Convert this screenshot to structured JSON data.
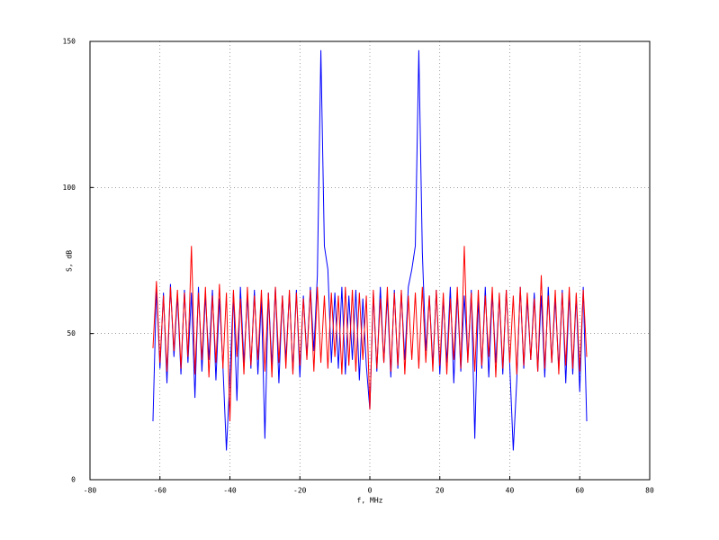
{
  "chart_data": {
    "type": "line",
    "xlabel": "f, MHz",
    "ylabel": "S, dB",
    "x": [
      -62,
      -61,
      -60,
      -59,
      -58,
      -57,
      -56,
      -55,
      -54,
      -53,
      -52,
      -51,
      -50,
      -49,
      -48,
      -47,
      -46,
      -45,
      -44,
      -43,
      -42,
      -41,
      -40,
      -39,
      -38,
      -37,
      -36,
      -35,
      -34,
      -33,
      -32,
      -31,
      -30,
      -29,
      -28,
      -27,
      -26,
      -25,
      -24,
      -23,
      -22,
      -21,
      -20,
      -19,
      -18,
      -17,
      -16,
      -15,
      -14,
      -13,
      -12,
      -11,
      -10,
      -9,
      -8,
      -7,
      -6,
      -5,
      -4,
      -3,
      -2,
      -1,
      0,
      1,
      2,
      3,
      4,
      5,
      6,
      7,
      8,
      9,
      10,
      11,
      12,
      13,
      14,
      15,
      16,
      17,
      18,
      19,
      20,
      21,
      22,
      23,
      24,
      25,
      26,
      27,
      28,
      29,
      30,
      31,
      32,
      33,
      34,
      35,
      36,
      37,
      38,
      39,
      40,
      41,
      42,
      43,
      44,
      45,
      46,
      47,
      48,
      49,
      50,
      51,
      52,
      53,
      54,
      55,
      56,
      57,
      58,
      59,
      60,
      61,
      62
    ],
    "series": [
      {
        "color": "#0000ff",
        "values": [
          20,
          66,
          38,
          64,
          33,
          67,
          42,
          63,
          36,
          65,
          40,
          64,
          28,
          66,
          37,
          63,
          41,
          65,
          34,
          62,
          39,
          10,
          35,
          64,
          27,
          66,
          40,
          63,
          38,
          65,
          36,
          62,
          14,
          64,
          39,
          66,
          33,
          63,
          41,
          64,
          37,
          65,
          35,
          63,
          42,
          66,
          44,
          70,
          147,
          80,
          72,
          40,
          64,
          38,
          66,
          36,
          63,
          41,
          65,
          34,
          62,
          39,
          24,
          64,
          37,
          66,
          40,
          63,
          35,
          65,
          38,
          64,
          41,
          66,
          72,
          80,
          147,
          78,
          44,
          63,
          39,
          65,
          36,
          62,
          40,
          66,
          33,
          64,
          37,
          63,
          41,
          65,
          14,
          62,
          38,
          66,
          35,
          64,
          40,
          63,
          36,
          65,
          39,
          10,
          34,
          66,
          38,
          62,
          41,
          64,
          37,
          63,
          35,
          66,
          40,
          62,
          38,
          65,
          33,
          64,
          36,
          63,
          30,
          66,
          20
        ]
      },
      {
        "color": "#ff0000",
        "values": [
          45,
          68,
          40,
          63,
          37,
          66,
          44,
          65,
          38,
          64,
          42,
          80,
          36,
          64,
          41,
          66,
          35,
          63,
          40,
          67,
          38,
          64,
          20,
          65,
          42,
          62,
          36,
          66,
          39,
          63,
          41,
          65,
          37,
          64,
          35,
          66,
          40,
          63,
          38,
          65,
          36,
          64,
          39,
          62,
          41,
          65,
          37,
          66,
          40,
          63,
          38,
          64,
          42,
          63,
          36,
          66,
          39,
          65,
          37,
          64,
          41,
          63,
          24,
          65,
          38,
          62,
          40,
          66,
          37,
          64,
          39,
          65,
          36,
          63,
          41,
          64,
          38,
          66,
          40,
          63,
          37,
          65,
          39,
          64,
          36,
          62,
          41,
          66,
          38,
          80,
          40,
          64,
          37,
          65,
          39,
          63,
          42,
          66,
          35,
          64,
          38,
          65,
          40,
          63,
          36,
          66,
          39,
          64,
          41,
          62,
          37,
          70,
          38,
          63,
          40,
          65,
          36,
          64,
          39,
          66,
          38,
          64,
          37,
          65,
          42
        ]
      }
    ],
    "xlim": [
      -80,
      80
    ],
    "xticks": [
      -80,
      -60,
      -40,
      -20,
      0,
      20,
      40,
      60,
      80
    ],
    "ylim": [
      0,
      150
    ],
    "yticks": [
      0,
      50,
      100,
      150
    ],
    "grid": true
  }
}
